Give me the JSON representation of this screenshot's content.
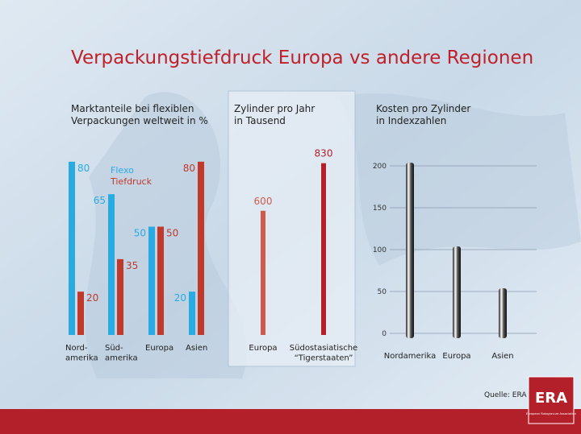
{
  "title": "Verpackungstiefdruck Europa vs andere Regionen",
  "chart_data": [
    {
      "type": "bar",
      "subtitle": "Marktanteile bei flexiblen\nVerpackungen weltweit in %",
      "categories": [
        "Nord-\namerika",
        "Süd-\namerika",
        "Europa",
        "Asien"
      ],
      "series": [
        {
          "name": "Flexo",
          "color": "#29abe2",
          "values": [
            80,
            65,
            50,
            20
          ]
        },
        {
          "name": "Tiefdruck",
          "color": "#c0392b",
          "values": [
            20,
            35,
            50,
            80
          ]
        }
      ]
    },
    {
      "type": "bar",
      "subtitle": "Zylinder pro Jahr\nin Tausend",
      "categories": [
        "Europa",
        "Südostasiatische\n“Tigerstaaten”"
      ],
      "values": [
        600,
        830
      ],
      "colors": [
        "#cd5c4c",
        "#b3202a"
      ]
    },
    {
      "type": "cylinder",
      "subtitle": "Kosten pro Zylinder\nin Indexzahlen",
      "categories": [
        "Nordamerika",
        "Europa",
        "Asien"
      ],
      "values": [
        200,
        100,
        50
      ],
      "ylim": [
        0,
        200
      ],
      "yticks": [
        0,
        50,
        100,
        150,
        200
      ],
      "grid": true
    }
  ],
  "source": "Quelle: ERA",
  "logo": {
    "name": "ERA",
    "tagline": "European Rotogravure Association"
  }
}
